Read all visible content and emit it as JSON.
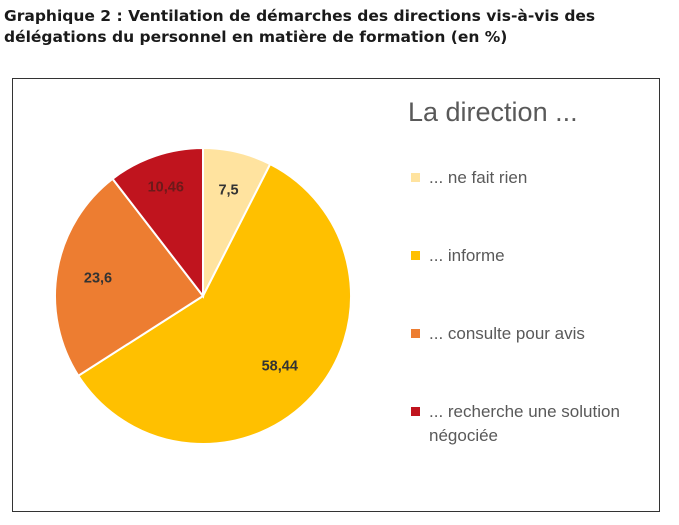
{
  "title": "Graphique 2 : Ventilation de démarches des directions vis-à-vis des délégations du personnel en matière de formation (en %)",
  "colors": {
    "ne_fait_rien": "#FFE39F",
    "informe": "#FFC000",
    "consulte": "#ED7D31",
    "recherche": "#C0141E"
  },
  "chart_data": {
    "type": "pie",
    "title": "Graphique 2 : Ventilation de démarches des directions vis-à-vis des délégations du personnel en matière de formation (en %)",
    "legend_title": "La direction ...",
    "legend_position": "right",
    "categories": [
      "... ne fait rien",
      "... informe",
      "... consulte pour avis",
      "... recherche une solution négociée"
    ],
    "values": [
      7.5,
      58.44,
      23.6,
      10.46
    ],
    "labels": [
      "7,5",
      "58,44",
      "23,6",
      "10,46"
    ],
    "colors": [
      "#FFE39F",
      "#FFC000",
      "#ED7D31",
      "#C0141E"
    ]
  }
}
